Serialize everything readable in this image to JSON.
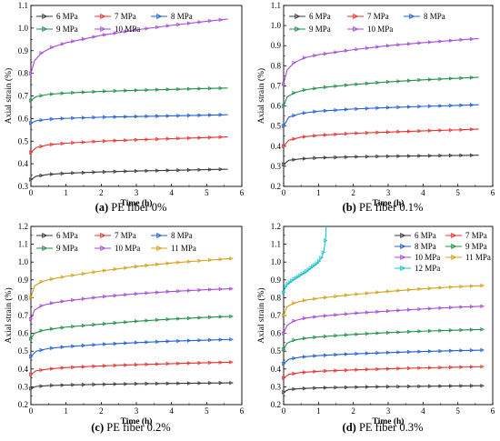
{
  "figure": {
    "title": ""
  },
  "chart_data": [
    {
      "type": "line",
      "caption_tag": "(a)",
      "caption_text": "PE fiber 0%",
      "xlabel": "Time (h)",
      "ylabel": "Axial strain (%)",
      "xlim": [
        0,
        6
      ],
      "ylim": [
        0.3,
        1.1
      ],
      "xticks": [
        "0",
        "1",
        "2",
        "3",
        "4",
        "5",
        "6"
      ],
      "yticks": [
        "0.3",
        "0.4",
        "0.5",
        "0.6",
        "0.7",
        "0.8",
        "0.9",
        "1.0",
        "1.1"
      ],
      "legend_position": "top-left",
      "legend_columns": 3,
      "series": [
        {
          "name": "6 MPa",
          "color": "#3a3a3a",
          "marker": "right-triangle",
          "x": [
            0,
            0.15,
            0.5,
            1,
            2,
            3,
            4,
            5,
            5.6
          ],
          "y": [
            0.33,
            0.345,
            0.353,
            0.358,
            0.364,
            0.368,
            0.371,
            0.374,
            0.376
          ]
        },
        {
          "name": "7 MPa",
          "color": "#e8312a",
          "marker": "right-triangle",
          "x": [
            0,
            0.15,
            0.5,
            1,
            2,
            3,
            4,
            5,
            5.6
          ],
          "y": [
            0.45,
            0.472,
            0.484,
            0.491,
            0.5,
            0.506,
            0.511,
            0.516,
            0.519
          ]
        },
        {
          "name": "8 MPa",
          "color": "#1e5fd6",
          "marker": "right-triangle",
          "x": [
            0,
            0.15,
            0.5,
            1,
            2,
            3,
            4,
            5,
            5.6
          ],
          "y": [
            0.58,
            0.59,
            0.597,
            0.601,
            0.606,
            0.609,
            0.612,
            0.615,
            0.617
          ]
        },
        {
          "name": "9 MPa",
          "color": "#1e8f4a",
          "marker": "right-triangle",
          "x": [
            0,
            0.15,
            0.5,
            1,
            2,
            3,
            4,
            5,
            5.6
          ],
          "y": [
            0.68,
            0.697,
            0.707,
            0.713,
            0.72,
            0.725,
            0.729,
            0.733,
            0.735
          ]
        },
        {
          "name": "10 MPa",
          "color": "#a64ad8",
          "marker": "right-triangle",
          "x": [
            0,
            0.1,
            0.3,
            0.6,
            1,
            2,
            3,
            4,
            5,
            5.6
          ],
          "y": [
            0.8,
            0.855,
            0.89,
            0.915,
            0.935,
            0.968,
            0.992,
            1.012,
            1.03,
            1.04
          ]
        }
      ]
    },
    {
      "type": "line",
      "caption_tag": "(b)",
      "caption_text": "PE fiber 0.1%",
      "xlabel": "Time (h)",
      "ylabel": "Axial strain (%)",
      "xlim": [
        0,
        6
      ],
      "ylim": [
        0.2,
        1.1
      ],
      "xticks": [
        "0",
        "1",
        "2",
        "3",
        "4",
        "5",
        "6"
      ],
      "yticks": [
        "0.2",
        "0.3",
        "0.4",
        "0.5",
        "0.6",
        "0.7",
        "0.8",
        "0.9",
        "1.0",
        "1.1"
      ],
      "legend_position": "top-left",
      "legend_columns": 3,
      "series": [
        {
          "name": "6 MPa",
          "color": "#3a3a3a",
          "marker": "right-triangle",
          "x": [
            0,
            0.15,
            0.5,
            1,
            2,
            3,
            4,
            5,
            5.6
          ],
          "y": [
            0.31,
            0.33,
            0.337,
            0.342,
            0.347,
            0.35,
            0.352,
            0.354,
            0.355
          ]
        },
        {
          "name": "7 MPa",
          "color": "#e8312a",
          "marker": "right-triangle",
          "x": [
            0,
            0.15,
            0.5,
            1,
            2,
            3,
            4,
            5,
            5.6
          ],
          "y": [
            0.4,
            0.43,
            0.445,
            0.454,
            0.464,
            0.47,
            0.476,
            0.481,
            0.485
          ]
        },
        {
          "name": "8 MPa",
          "color": "#1e5fd6",
          "marker": "right-triangle",
          "x": [
            0,
            0.15,
            0.5,
            1,
            2,
            3,
            4,
            5,
            5.6
          ],
          "y": [
            0.5,
            0.545,
            0.563,
            0.574,
            0.585,
            0.592,
            0.598,
            0.603,
            0.606
          ]
        },
        {
          "name": "9 MPa",
          "color": "#1e8f4a",
          "marker": "right-triangle",
          "x": [
            0,
            0.1,
            0.3,
            0.6,
            1,
            2,
            3,
            4,
            5,
            5.6
          ],
          "y": [
            0.6,
            0.645,
            0.665,
            0.68,
            0.69,
            0.707,
            0.72,
            0.73,
            0.738,
            0.743
          ]
        },
        {
          "name": "10 MPa",
          "color": "#a64ad8",
          "marker": "right-triangle",
          "x": [
            0,
            0.1,
            0.3,
            0.6,
            1,
            2,
            3,
            4,
            5,
            5.6
          ],
          "y": [
            0.71,
            0.78,
            0.815,
            0.84,
            0.855,
            0.88,
            0.9,
            0.915,
            0.928,
            0.935
          ]
        }
      ]
    },
    {
      "type": "line",
      "caption_tag": "(c)",
      "caption_text": "PE fiber 0.2%",
      "xlabel": "Time (h)",
      "ylabel": "Axial strain (%)",
      "xlim": [
        0,
        6
      ],
      "ylim": [
        0.2,
        1.2
      ],
      "xticks": [
        "0",
        "1",
        "2",
        "3",
        "4",
        "5",
        "6"
      ],
      "yticks": [
        "0.2",
        "0.3",
        "0.4",
        "0.5",
        "0.6",
        "0.7",
        "0.8",
        "0.9",
        "1.0",
        "1.1",
        "1.2"
      ],
      "legend_position": "top-left",
      "legend_columns": 3,
      "series": [
        {
          "name": "6 MPa",
          "color": "#3a3a3a",
          "marker": "right-triangle",
          "x": [
            0,
            0.15,
            0.5,
            1,
            2,
            3,
            4,
            5,
            5.7
          ],
          "y": [
            0.29,
            0.302,
            0.307,
            0.31,
            0.314,
            0.317,
            0.319,
            0.321,
            0.322
          ]
        },
        {
          "name": "7 MPa",
          "color": "#e8312a",
          "marker": "right-triangle",
          "x": [
            0,
            0.15,
            0.5,
            1,
            2,
            3,
            4,
            5,
            5.7
          ],
          "y": [
            0.37,
            0.39,
            0.4,
            0.408,
            0.417,
            0.424,
            0.43,
            0.435,
            0.438
          ]
        },
        {
          "name": "8 MPa",
          "color": "#1e5fd6",
          "marker": "right-triangle",
          "x": [
            0,
            0.15,
            0.5,
            1,
            2,
            3,
            4,
            5,
            5.7
          ],
          "y": [
            0.47,
            0.5,
            0.515,
            0.525,
            0.538,
            0.548,
            0.556,
            0.562,
            0.566
          ]
        },
        {
          "name": "9 MPa",
          "color": "#1e8f4a",
          "marker": "right-triangle",
          "x": [
            0,
            0.1,
            0.3,
            0.6,
            1,
            2,
            3,
            4,
            5,
            5.7
          ],
          "y": [
            0.57,
            0.6,
            0.615,
            0.625,
            0.635,
            0.652,
            0.668,
            0.68,
            0.69,
            0.695
          ]
        },
        {
          "name": "10 MPa",
          "color": "#a64ad8",
          "marker": "right-triangle",
          "x": [
            0,
            0.1,
            0.3,
            0.6,
            1,
            2,
            3,
            4,
            5,
            5.7
          ],
          "y": [
            0.68,
            0.73,
            0.755,
            0.77,
            0.782,
            0.805,
            0.822,
            0.835,
            0.845,
            0.85
          ]
        },
        {
          "name": "11 MPa",
          "color": "#d4a017",
          "marker": "right-triangle",
          "x": [
            0,
            0.1,
            0.3,
            0.6,
            1,
            2,
            3,
            4,
            5,
            5.7
          ],
          "y": [
            0.8,
            0.865,
            0.89,
            0.905,
            0.92,
            0.95,
            0.975,
            0.995,
            1.01,
            1.02
          ]
        }
      ]
    },
    {
      "type": "line",
      "caption_tag": "(d)",
      "caption_text": "PE fiber 0.3%",
      "xlabel": "Time (h)",
      "ylabel": "Axial strain (%)",
      "xlim": [
        0,
        6
      ],
      "ylim": [
        0.2,
        1.2
      ],
      "xticks": [
        "0",
        "1",
        "2",
        "3",
        "4",
        "5",
        "6"
      ],
      "yticks": [
        "0.2",
        "0.3",
        "0.4",
        "0.5",
        "0.6",
        "0.7",
        "0.8",
        "0.9",
        "1.0",
        "1.1",
        "1.2"
      ],
      "legend_position": "top-right",
      "legend_columns": 2,
      "series": [
        {
          "name": "6 MPa",
          "color": "#3a3a3a",
          "marker": "right-triangle",
          "x": [
            0,
            0.15,
            0.5,
            1,
            2,
            3,
            4,
            5,
            5.7
          ],
          "y": [
            0.27,
            0.285,
            0.29,
            0.294,
            0.298,
            0.301,
            0.303,
            0.305,
            0.306
          ]
        },
        {
          "name": "7 MPa",
          "color": "#e8312a",
          "marker": "right-triangle",
          "x": [
            0,
            0.15,
            0.5,
            1,
            2,
            3,
            4,
            5,
            5.7
          ],
          "y": [
            0.35,
            0.37,
            0.38,
            0.387,
            0.395,
            0.401,
            0.406,
            0.41,
            0.413
          ]
        },
        {
          "name": "8 MPa",
          "color": "#1e5fd6",
          "marker": "right-triangle",
          "x": [
            0,
            0.15,
            0.5,
            1,
            2,
            3,
            4,
            5,
            5.7
          ],
          "y": [
            0.43,
            0.455,
            0.467,
            0.475,
            0.485,
            0.492,
            0.498,
            0.503,
            0.506
          ]
        },
        {
          "name": "9 MPa",
          "color": "#1e8f4a",
          "marker": "right-triangle",
          "x": [
            0,
            0.1,
            0.3,
            0.6,
            1,
            2,
            3,
            4,
            5,
            5.7
          ],
          "y": [
            0.51,
            0.545,
            0.562,
            0.572,
            0.58,
            0.594,
            0.604,
            0.612,
            0.618,
            0.622
          ]
        },
        {
          "name": "10 MPa",
          "color": "#a64ad8",
          "marker": "right-triangle",
          "x": [
            0,
            0.1,
            0.3,
            0.6,
            1,
            2,
            3,
            4,
            5,
            5.7
          ],
          "y": [
            0.6,
            0.645,
            0.67,
            0.685,
            0.695,
            0.712,
            0.725,
            0.737,
            0.747,
            0.752
          ]
        },
        {
          "name": "11 MPa",
          "color": "#d4a017",
          "marker": "right-triangle",
          "x": [
            0,
            0.1,
            0.3,
            0.6,
            1,
            2,
            3,
            4,
            5,
            5.7
          ],
          "y": [
            0.7,
            0.75,
            0.77,
            0.785,
            0.797,
            0.818,
            0.835,
            0.85,
            0.862,
            0.868
          ]
        },
        {
          "name": "12 MPa",
          "color": "#17c3cf",
          "marker": "right-triangle",
          "x": [
            0,
            0.05,
            0.1,
            0.2,
            0.3,
            0.4,
            0.5,
            0.6,
            0.7,
            0.8,
            0.9,
            1.0,
            1.05,
            1.1,
            1.15,
            1.2,
            1.22
          ],
          "y": [
            0.83,
            0.86,
            0.875,
            0.89,
            0.905,
            0.915,
            0.93,
            0.94,
            0.955,
            0.97,
            0.985,
            1.0,
            1.015,
            1.03,
            1.06,
            1.12,
            1.2
          ]
        }
      ]
    }
  ]
}
